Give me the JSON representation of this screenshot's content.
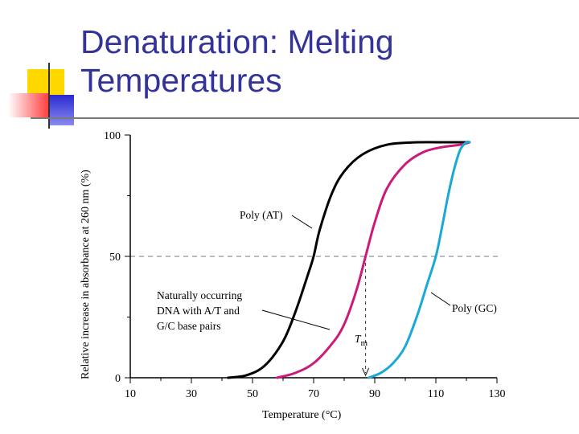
{
  "slide": {
    "title_line1": "Denaturation: Melting",
    "title_line2": "Temperatures",
    "colors": {
      "title": "#333399",
      "yellow": "#ffd800",
      "red": "#ff4040",
      "blue": "#2a2ad0"
    }
  },
  "chart_data": {
    "type": "line",
    "xlabel": "Temperature (°C)",
    "ylabel": "Relative increase in absorbance at 260 nm (%)",
    "xlim": [
      10,
      130
    ],
    "ylim": [
      0,
      100
    ],
    "x_ticks": [
      10,
      30,
      50,
      70,
      90,
      110,
      130
    ],
    "y_ticks": [
      0,
      50,
      100
    ],
    "reference_line": {
      "y": 50,
      "style": "dashed"
    },
    "tm_marker": {
      "x": 87,
      "label": "T",
      "subscript": "m"
    },
    "series": [
      {
        "name": "Poly (AT)",
        "color": "#000000",
        "x": [
          42,
          48,
          54,
          60,
          64,
          68,
          70,
          72,
          76,
          80,
          86,
          94,
          104,
          114,
          121
        ],
        "y": [
          0,
          1,
          5,
          15,
          27,
          42,
          50,
          61,
          76,
          85,
          92,
          96,
          97,
          97,
          97
        ]
      },
      {
        "name": "Naturally occurring DNA with A/T and G/C base pairs",
        "color": "#cc1a7a",
        "x": [
          58,
          64,
          70,
          76,
          80,
          84,
          87,
          90,
          94,
          100,
          106,
          112,
          118,
          121
        ],
        "y": [
          0,
          2,
          6,
          14,
          22,
          36,
          50,
          64,
          78,
          88,
          93,
          95,
          96,
          97
        ]
      },
      {
        "name": "Poly (GC)",
        "color": "#1aa8d8",
        "x": [
          88,
          92,
          96,
          100,
          104,
          107,
          110,
          112,
          114,
          116,
          118,
          120,
          121
        ],
        "y": [
          0,
          2,
          6,
          13,
          26,
          38,
          50,
          62,
          75,
          86,
          94,
          97,
          97
        ]
      }
    ],
    "annotations": {
      "poly_at": "Poly (AT)",
      "natural_1": "Naturally occurring",
      "natural_2": "DNA with A/T and",
      "natural_3": "G/C base pairs",
      "poly_gc": "Poly (GC)"
    }
  }
}
